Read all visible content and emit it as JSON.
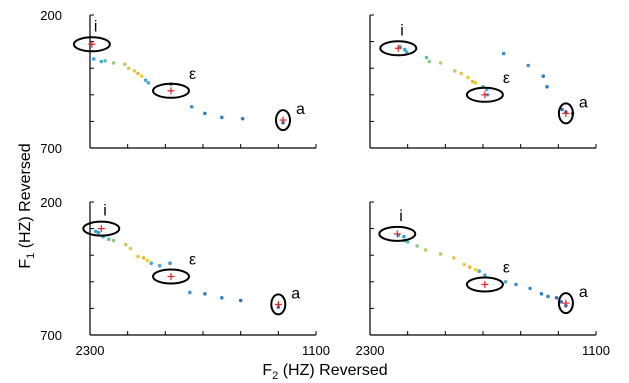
{
  "figure": {
    "ylabel": {
      "main": "F",
      "sub": "1",
      "rest": " (HZ) Reversed"
    },
    "xlabel": {
      "main": "F",
      "sub": "2",
      "rest": " (HZ) Reversed"
    }
  },
  "chart_data": [
    {
      "type": "scatter",
      "panel": "top-left",
      "xlim": [
        2300,
        1100
      ],
      "ylim": [
        200,
        700
      ],
      "x_reversed": true,
      "y_reversed": true,
      "yticklabels": [
        "200",
        "700"
      ],
      "xticklabels": [],
      "vowels": [
        {
          "label": "i",
          "f2": 2290,
          "f1": 310
        },
        {
          "label": "ε",
          "f2": 1870,
          "f1": 485
        },
        {
          "label": "a",
          "f2": 1275,
          "f1": 595
        }
      ],
      "series": [
        {
          "values": [
            [
              2280,
              365
            ],
            [
              2240,
              375
            ],
            [
              2220,
              372
            ],
            [
              2175,
              380
            ],
            [
              2115,
              385
            ],
            [
              2095,
              400
            ],
            [
              2065,
              410
            ],
            [
              2045,
              420
            ],
            [
              2025,
              430
            ],
            [
              2005,
              445
            ],
            [
              1990,
              455
            ],
            [
              1870,
              460
            ],
            [
              1760,
              545
            ],
            [
              1690,
              570
            ],
            [
              1600,
              585
            ],
            [
              1490,
              590
            ],
            [
              1275,
              605
            ]
          ]
        }
      ]
    },
    {
      "type": "scatter",
      "panel": "top-right",
      "xlim": [
        2300,
        1100
      ],
      "ylim": [
        200,
        700
      ],
      "x_reversed": true,
      "y_reversed": true,
      "yticklabels": [],
      "xticklabels": [],
      "vowels": [
        {
          "label": "i",
          "f2": 2150,
          "f1": 325
        },
        {
          "label": "ε",
          "f2": 1690,
          "f1": 500
        },
        {
          "label": "a",
          "f2": 1260,
          "f1": 570
        }
      ],
      "series": [
        {
          "values": [
            [
              2140,
              320
            ],
            [
              2115,
              330
            ],
            [
              2105,
              340
            ],
            [
              2000,
              360
            ],
            [
              1985,
              375
            ],
            [
              1925,
              380
            ],
            [
              1850,
              410
            ],
            [
              1815,
              420
            ],
            [
              1780,
              435
            ],
            [
              1755,
              450
            ],
            [
              1740,
              455
            ],
            [
              1700,
              470
            ],
            [
              1680,
              480
            ],
            [
              1675,
              500
            ],
            [
              1590,
              345
            ],
            [
              1460,
              390
            ],
            [
              1380,
              430
            ],
            [
              1360,
              470
            ],
            [
              1280,
              555
            ],
            [
              1260,
              565
            ],
            [
              1225,
              570
            ]
          ]
        }
      ]
    },
    {
      "type": "scatter",
      "panel": "bottom-left",
      "xlim": [
        2300,
        1100
      ],
      "ylim": [
        200,
        700
      ],
      "x_reversed": true,
      "y_reversed": true,
      "yticklabels": [
        "200",
        "700"
      ],
      "xticklabels": [
        "2300",
        "1100"
      ],
      "vowels": [
        {
          "label": "i",
          "f2": 2240,
          "f1": 300
        },
        {
          "label": "ε",
          "f2": 1870,
          "f1": 480
        },
        {
          "label": "a",
          "f2": 1300,
          "f1": 585
        }
      ],
      "series": [
        {
          "values": [
            [
              2270,
              310
            ],
            [
              2255,
              315
            ],
            [
              2230,
              330
            ],
            [
              2200,
              340
            ],
            [
              2175,
              345
            ],
            [
              2110,
              360
            ],
            [
              2085,
              375
            ],
            [
              2045,
              405
            ],
            [
              2015,
              410
            ],
            [
              1995,
              420
            ],
            [
              1975,
              430
            ],
            [
              1930,
              440
            ],
            [
              1875,
              430
            ],
            [
              1770,
              540
            ],
            [
              1690,
              545
            ],
            [
              1600,
              560
            ],
            [
              1500,
              570
            ],
            [
              1300,
              595
            ]
          ]
        }
      ]
    },
    {
      "type": "scatter",
      "panel": "bottom-right",
      "xlim": [
        2300,
        1100
      ],
      "ylim": [
        200,
        700
      ],
      "x_reversed": true,
      "y_reversed": true,
      "yticklabels": [],
      "xticklabels": [
        "2300",
        "1100"
      ],
      "vowels": [
        {
          "label": "i",
          "f2": 2155,
          "f1": 320
        },
        {
          "label": "ε",
          "f2": 1690,
          "f1": 510
        },
        {
          "label": "a",
          "f2": 1260,
          "f1": 580
        }
      ],
      "series": [
        {
          "values": [
            [
              2150,
              325
            ],
            [
              2120,
              330
            ],
            [
              2115,
              345
            ],
            [
              2100,
              350
            ],
            [
              2050,
              365
            ],
            [
              2005,
              380
            ],
            [
              1925,
              395
            ],
            [
              1855,
              410
            ],
            [
              1800,
              435
            ],
            [
              1770,
              445
            ],
            [
              1740,
              455
            ],
            [
              1720,
              460
            ],
            [
              1690,
              475
            ],
            [
              1580,
              500
            ],
            [
              1525,
              510
            ],
            [
              1450,
              525
            ],
            [
              1390,
              545
            ],
            [
              1355,
              555
            ],
            [
              1310,
              560
            ],
            [
              1285,
              575
            ],
            [
              1260,
              590
            ]
          ]
        }
      ]
    }
  ]
}
